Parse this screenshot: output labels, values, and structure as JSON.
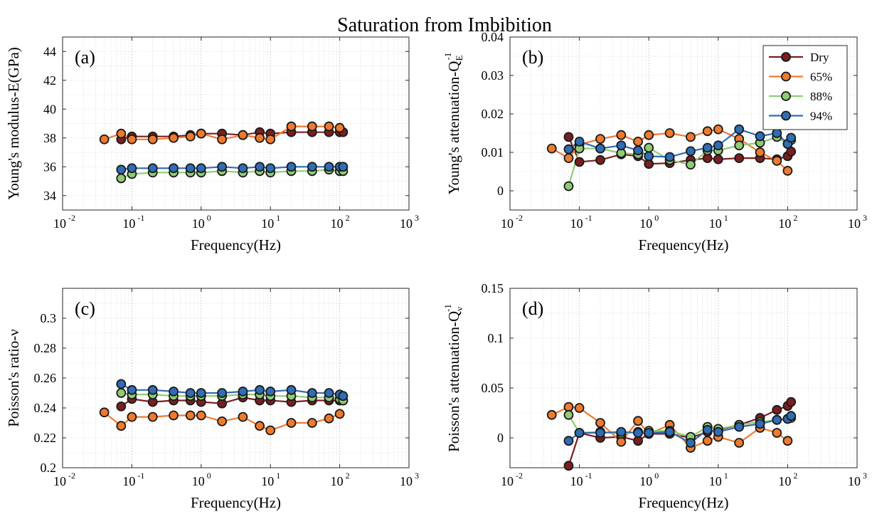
{
  "chart_data": {
    "title": "Saturation from Imbibition",
    "legend": {
      "placement": "top-right (panel b)",
      "entries": [
        {
          "name": "Dry",
          "color": "#7a1f1f"
        },
        {
          "name": "65%",
          "color": "#ef7a2e"
        },
        {
          "name": "88%",
          "color": "#8fcc73"
        },
        {
          "name": "94%",
          "color": "#2f6db5"
        }
      ]
    },
    "subplots": [
      {
        "id": "a",
        "label": "(a)",
        "type": "line",
        "xscale": "log",
        "xlim": [
          0.01,
          1000
        ],
        "ylim": [
          33,
          45
        ],
        "yticks": [
          34,
          36,
          38,
          40,
          42,
          44
        ],
        "xlabel": "Frequency(Hz)",
        "ylabel": "Young's modulus-E(GPa)",
        "grid": true,
        "series": [
          {
            "name": "Dry",
            "x": [
              0.07,
              0.1,
              0.2,
              0.4,
              0.7,
              1,
              2,
              4,
              7,
              10,
              20,
              40,
              70,
              100,
              112
            ],
            "y": [
              37.9,
              38.1,
              38.1,
              38.1,
              38.2,
              38.3,
              38.3,
              38.2,
              38.4,
              38.3,
              38.4,
              38.4,
              38.4,
              38.4,
              38.4
            ]
          },
          {
            "name": "65%",
            "x": [
              0.04,
              0.07,
              0.1,
              0.2,
              0.4,
              0.7,
              1,
              2,
              4,
              7,
              10,
              20,
              40,
              70,
              100
            ],
            "y": [
              37.9,
              38.3,
              37.9,
              37.9,
              38.0,
              38.1,
              38.3,
              37.9,
              38.2,
              38.0,
              37.9,
              38.8,
              38.8,
              38.8,
              38.7
            ]
          },
          {
            "name": "88%",
            "x": [
              0.07,
              0.1,
              0.2,
              0.4,
              0.7,
              1,
              2,
              4,
              7,
              10,
              20,
              40,
              70,
              100,
              112
            ],
            "y": [
              35.2,
              35.5,
              35.6,
              35.6,
              35.6,
              35.6,
              35.7,
              35.6,
              35.7,
              35.6,
              35.7,
              35.7,
              35.8,
              35.7,
              35.7
            ]
          },
          {
            "name": "94%",
            "x": [
              0.07,
              0.1,
              0.2,
              0.4,
              0.7,
              1,
              2,
              4,
              7,
              10,
              20,
              40,
              70,
              100,
              112
            ],
            "y": [
              35.8,
              35.9,
              35.9,
              35.9,
              35.9,
              35.9,
              36.0,
              35.9,
              36.0,
              35.9,
              36.0,
              36.0,
              36.0,
              36.0,
              36.0
            ]
          }
        ]
      },
      {
        "id": "b",
        "label": "(b)",
        "type": "line",
        "xscale": "log",
        "xlim": [
          0.01,
          1000
        ],
        "ylim": [
          -0.005,
          0.04
        ],
        "yticks": [
          0,
          0.01,
          0.02,
          0.03,
          0.04
        ],
        "xlabel": "Frequency(Hz)",
        "ylabel": "Young's attenuation-Q",
        "ylabel_sub": "E",
        "ylabel_sup": "-1",
        "grid": true,
        "series": [
          {
            "name": "Dry",
            "x": [
              0.07,
              0.1,
              0.2,
              0.4,
              0.7,
              1,
              2,
              4,
              7,
              10,
              20,
              40,
              70,
              100,
              112
            ],
            "y": [
              0.014,
              0.0075,
              0.008,
              0.0095,
              0.009,
              0.007,
              0.0072,
              0.008,
              0.0085,
              0.0082,
              0.0085,
              0.0085,
              0.0082,
              0.009,
              0.0102
            ]
          },
          {
            "name": "65%",
            "x": [
              0.04,
              0.07,
              0.1,
              0.2,
              0.4,
              0.7,
              1,
              2,
              4,
              7,
              10,
              20,
              40,
              70,
              100
            ],
            "y": [
              0.011,
              0.0085,
              0.012,
              0.0135,
              0.0145,
              0.0128,
              0.0145,
              0.015,
              0.014,
              0.0155,
              0.016,
              0.0135,
              0.01,
              0.0078,
              0.0052
            ]
          },
          {
            "name": "88%",
            "x": [
              0.07,
              0.1,
              0.2,
              0.4,
              0.7,
              1,
              2,
              4,
              7,
              10,
              20,
              40,
              70,
              100,
              112
            ],
            "y": [
              0.0012,
              0.011,
              0.011,
              0.0098,
              0.0095,
              0.0112,
              0.008,
              0.0068,
              0.0105,
              0.0105,
              0.0118,
              0.0125,
              0.014,
              0.0122,
              0.0132
            ]
          },
          {
            "name": "94%",
            "x": [
              0.07,
              0.1,
              0.2,
              0.4,
              0.7,
              1,
              2,
              4,
              7,
              10,
              20,
              40,
              70,
              100,
              112
            ],
            "y": [
              0.0108,
              0.0128,
              0.011,
              0.0118,
              0.0105,
              0.009,
              0.0088,
              0.0103,
              0.0112,
              0.0118,
              0.016,
              0.0142,
              0.015,
              0.0122,
              0.0138
            ]
          }
        ]
      },
      {
        "id": "c",
        "label": "(c)",
        "type": "line",
        "xscale": "log",
        "xlim": [
          0.01,
          1000
        ],
        "ylim": [
          0.2,
          0.32
        ],
        "yticks": [
          0.2,
          0.22,
          0.24,
          0.26,
          0.28,
          0.3
        ],
        "xlabel": "Frequency(Hz)",
        "ylabel": "Poisson's ratio-ν",
        "grid": true,
        "series": [
          {
            "name": "Dry",
            "x": [
              0.07,
              0.1,
              0.2,
              0.4,
              0.7,
              1,
              2,
              4,
              7,
              10,
              20,
              40,
              70,
              100,
              112
            ],
            "y": [
              0.241,
              0.246,
              0.244,
              0.245,
              0.245,
              0.244,
              0.243,
              0.247,
              0.245,
              0.245,
              0.244,
              0.245,
              0.245,
              0.245,
              0.245
            ]
          },
          {
            "name": "65%",
            "x": [
              0.04,
              0.07,
              0.1,
              0.2,
              0.4,
              0.7,
              1,
              2,
              4,
              7,
              10,
              20,
              40,
              70,
              100
            ],
            "y": [
              0.237,
              0.228,
              0.234,
              0.234,
              0.235,
              0.235,
              0.235,
              0.231,
              0.234,
              0.228,
              0.225,
              0.23,
              0.23,
              0.233,
              0.236
            ]
          },
          {
            "name": "88%",
            "x": [
              0.07,
              0.1,
              0.2,
              0.4,
              0.7,
              1,
              2,
              4,
              7,
              10,
              20,
              40,
              70,
              100,
              112
            ],
            "y": [
              0.25,
              0.249,
              0.249,
              0.248,
              0.248,
              0.248,
              0.248,
              0.249,
              0.249,
              0.248,
              0.248,
              0.247,
              0.247,
              0.246,
              0.245
            ]
          },
          {
            "name": "94%",
            "x": [
              0.07,
              0.1,
              0.2,
              0.4,
              0.7,
              1,
              2,
              4,
              7,
              10,
              20,
              40,
              70,
              100,
              112
            ],
            "y": [
              0.256,
              0.252,
              0.252,
              0.251,
              0.25,
              0.25,
              0.25,
              0.251,
              0.252,
              0.251,
              0.252,
              0.25,
              0.25,
              0.249,
              0.248
            ]
          }
        ]
      },
      {
        "id": "d",
        "label": "(d)",
        "type": "line",
        "xscale": "log",
        "xlim": [
          0.01,
          1000
        ],
        "ylim": [
          -0.03,
          0.15
        ],
        "yticks": [
          0,
          0.05,
          0.1,
          0.15
        ],
        "xlabel": "Frequency(Hz)",
        "ylabel": "Poisson's attenuation-Q",
        "ylabel_sub": "ν",
        "ylabel_sup": "-1",
        "grid": true,
        "series": [
          {
            "name": "Dry",
            "x": [
              0.07,
              0.1,
              0.2,
              0.4,
              0.7,
              1,
              2,
              4,
              7,
              10,
              20,
              40,
              70,
              100,
              112
            ],
            "y": [
              -0.028,
              0.005,
              0.0,
              0.001,
              -0.003,
              0.004,
              0.004,
              0.0,
              0.006,
              0.008,
              0.013,
              0.02,
              0.028,
              0.032,
              0.036
            ]
          },
          {
            "name": "65%",
            "x": [
              0.04,
              0.07,
              0.1,
              0.2,
              0.4,
              0.7,
              1,
              2,
              4,
              7,
              10,
              20,
              40,
              70,
              100
            ],
            "y": [
              0.023,
              0.031,
              0.03,
              0.015,
              -0.004,
              0.017,
              0.004,
              0.013,
              -0.01,
              -0.003,
              0.001,
              -0.005,
              0.01,
              0.005,
              -0.003
            ]
          },
          {
            "name": "88%",
            "x": [
              0.07,
              0.1,
              0.2,
              0.4,
              0.7,
              1,
              2,
              4,
              7,
              10,
              20,
              40,
              70,
              100,
              112
            ],
            "y": [
              0.023,
              0.005,
              0.006,
              0.004,
              0.006,
              0.007,
              0.007,
              0.001,
              0.011,
              0.009,
              0.013,
              0.016,
              0.018,
              0.019,
              0.02
            ]
          },
          {
            "name": "94%",
            "x": [
              0.07,
              0.1,
              0.2,
              0.4,
              0.7,
              1,
              2,
              4,
              7,
              10,
              20,
              40,
              70,
              100,
              112
            ],
            "y": [
              -0.003,
              0.005,
              0.005,
              0.006,
              0.005,
              0.005,
              0.006,
              -0.005,
              0.008,
              0.006,
              0.011,
              0.014,
              0.018,
              0.019,
              0.022
            ]
          }
        ]
      }
    ]
  }
}
